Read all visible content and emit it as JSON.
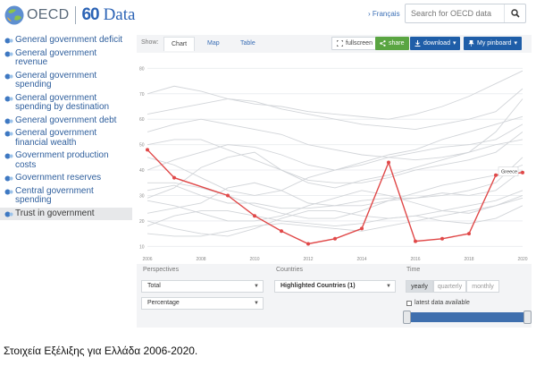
{
  "header": {
    "logo_text": "OECD",
    "brand_number": "60",
    "brand_word": "Data",
    "language_link": "› Français",
    "search_placeholder": "Search for OECD data"
  },
  "sidebar": {
    "items": [
      {
        "label": "General government deficit",
        "active": false
      },
      {
        "label": "General government revenue",
        "active": false
      },
      {
        "label": "General government spending",
        "active": false
      },
      {
        "label": "General government spending by destination",
        "active": false
      },
      {
        "label": "General government debt",
        "active": false
      },
      {
        "label": "General government financial wealth",
        "active": false
      },
      {
        "label": "Government production costs",
        "active": false
      },
      {
        "label": "Government reserves",
        "active": false
      },
      {
        "label": "Central government spending",
        "active": false
      },
      {
        "label": "Trust in government",
        "active": true
      }
    ]
  },
  "toolbar": {
    "show_label": "Show:",
    "tabs": [
      "Chart",
      "Map",
      "Table"
    ],
    "active_tab": "Chart",
    "fullscreen_label": "fullscreen",
    "share_label": "share",
    "download_label": "download",
    "pinboard_label": "My pinboard"
  },
  "controls": {
    "perspectives_label": "Perspectives",
    "perspective_value": "Total",
    "measure_value": "Percentage",
    "countries_label": "Countries",
    "countries_value": "Highlighted Countries (1)",
    "time_label": "Time",
    "time_options": [
      "yearly",
      "quarterly",
      "monthly"
    ],
    "time_selected": "yearly",
    "latest_label": "latest data available"
  },
  "colors": {
    "highlight": "#e04848",
    "background_series": "#d2d5d9",
    "accent_blue": "#1f5ea8",
    "share_green": "#5aa542"
  },
  "chart_data": {
    "type": "line",
    "title": "",
    "xlabel": "",
    "ylabel": "",
    "x": [
      2006,
      2007,
      2008,
      2009,
      2010,
      2011,
      2012,
      2013,
      2014,
      2015,
      2016,
      2017,
      2018,
      2019,
      2020
    ],
    "xticks": [
      "2006",
      "2008",
      "2010",
      "2012",
      "2014",
      "2016",
      "2018",
      "2020"
    ],
    "yticks": [
      "10",
      "20",
      "30",
      "40",
      "50",
      "60",
      "70",
      "80"
    ],
    "ylim": [
      8,
      84
    ],
    "grid": true,
    "highlight_series": {
      "name": "Greece",
      "values": [
        48,
        37,
        null,
        30,
        22,
        16,
        11,
        13,
        17,
        43,
        12,
        13,
        15,
        38,
        39
      ]
    },
    "background_series": [
      [
        29,
        33,
        41,
        45,
        47,
        40,
        35,
        33,
        36,
        38,
        41,
        44,
        47,
        55,
        68
      ],
      [
        40,
        44,
        47,
        50,
        49,
        46,
        42,
        40,
        42,
        45,
        47,
        49,
        50,
        52,
        58
      ],
      [
        32,
        34,
        30,
        27,
        27,
        25,
        25,
        26,
        28,
        29,
        29,
        30,
        32,
        35,
        45
      ],
      [
        23,
        25,
        27,
        33,
        35,
        32,
        27,
        26,
        26,
        28,
        29,
        31,
        30,
        32,
        40
      ],
      [
        20,
        17,
        15,
        14,
        17,
        21,
        24,
        24,
        22,
        21,
        22,
        20,
        19,
        21,
        26
      ],
      [
        18,
        22,
        24,
        24,
        22,
        20,
        19,
        18,
        19,
        21,
        22,
        24,
        26,
        28,
        32
      ],
      [
        55,
        58,
        60,
        58,
        56,
        54,
        50,
        48,
        46,
        45,
        44,
        45,
        47,
        50,
        52
      ],
      [
        62,
        64,
        66,
        68,
        67,
        64,
        62,
        60,
        58,
        57,
        56,
        58,
        60,
        63,
        72
      ],
      [
        70,
        73,
        71,
        68,
        66,
        65,
        63,
        62,
        61,
        60,
        62,
        65,
        69,
        74,
        79
      ],
      [
        45,
        42,
        37,
        32,
        30,
        32,
        37,
        40,
        43,
        46,
        48,
        52,
        55,
        58,
        61
      ],
      [
        35,
        35,
        33,
        30,
        26,
        23,
        21,
        21,
        24,
        28,
        31,
        34,
        36,
        38,
        42
      ],
      [
        28,
        26,
        23,
        20,
        20,
        22,
        26,
        29,
        32,
        30,
        27,
        24,
        23,
        26,
        29
      ],
      [
        50,
        52,
        52,
        48,
        44,
        40,
        36,
        35,
        35,
        37,
        40,
        42,
        44,
        47,
        55
      ],
      [
        15,
        14,
        14,
        16,
        18,
        19,
        18,
        17,
        16,
        18,
        20,
        22,
        24,
        26,
        30
      ]
    ]
  },
  "caption": "Στοιχεία Εξέλιξης για Ελλάδα 2006-2020."
}
